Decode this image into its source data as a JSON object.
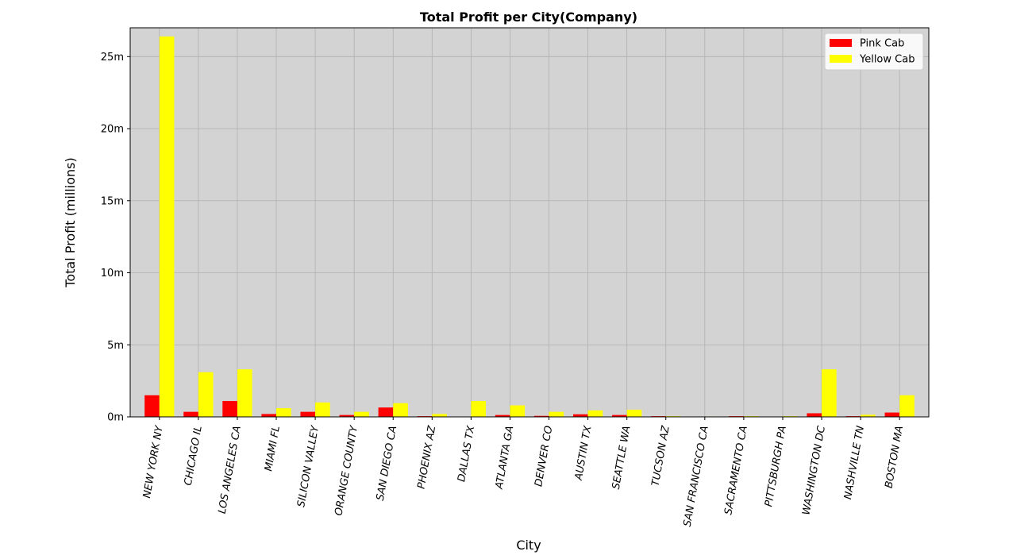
{
  "chart_data": {
    "type": "bar",
    "title": "Total Profit per City(Company)",
    "xlabel": "City",
    "ylabel": "Total Profit (millions)",
    "ylim": [
      0,
      27
    ],
    "yticks": [
      0,
      5,
      10,
      15,
      20,
      25
    ],
    "ytick_labels": [
      "0m",
      "5m",
      "10m",
      "15m",
      "20m",
      "25m"
    ],
    "grid": true,
    "legend_position": "top-right",
    "plot_background": "#d3d3d3",
    "categories": [
      "NEW YORK NY",
      "CHICAGO IL",
      "LOS ANGELES CA",
      "MIAMI FL",
      "SILICON VALLEY",
      "ORANGE COUNTY",
      "SAN DIEGO CA",
      "PHOENIX AZ",
      "DALLAS TX",
      "ATLANTA GA",
      "DENVER CO",
      "AUSTIN TX",
      "SEATTLE WA",
      "TUCSON AZ",
      "SAN FRANCISCO CA",
      "SACRAMENTO CA",
      "PITTSBURGH PA",
      "WASHINGTON DC",
      "NASHVILLE TN",
      "BOSTON MA"
    ],
    "series": [
      {
        "name": "Pink Cab",
        "color": "#ff0000",
        "values": [
          1.5,
          0.35,
          1.1,
          0.2,
          0.35,
          0.13,
          0.65,
          0.05,
          0.02,
          0.13,
          0.07,
          0.18,
          0.13,
          0.05,
          0.02,
          0.05,
          0.01,
          0.25,
          0.05,
          0.3
        ]
      },
      {
        "name": "Yellow Cab",
        "color": "#ffff00",
        "values": [
          26.4,
          3.1,
          3.3,
          0.6,
          1.0,
          0.35,
          0.95,
          0.2,
          1.1,
          0.8,
          0.35,
          0.45,
          0.5,
          0.05,
          0.03,
          0.05,
          0.05,
          3.3,
          0.15,
          1.5
        ]
      }
    ]
  }
}
